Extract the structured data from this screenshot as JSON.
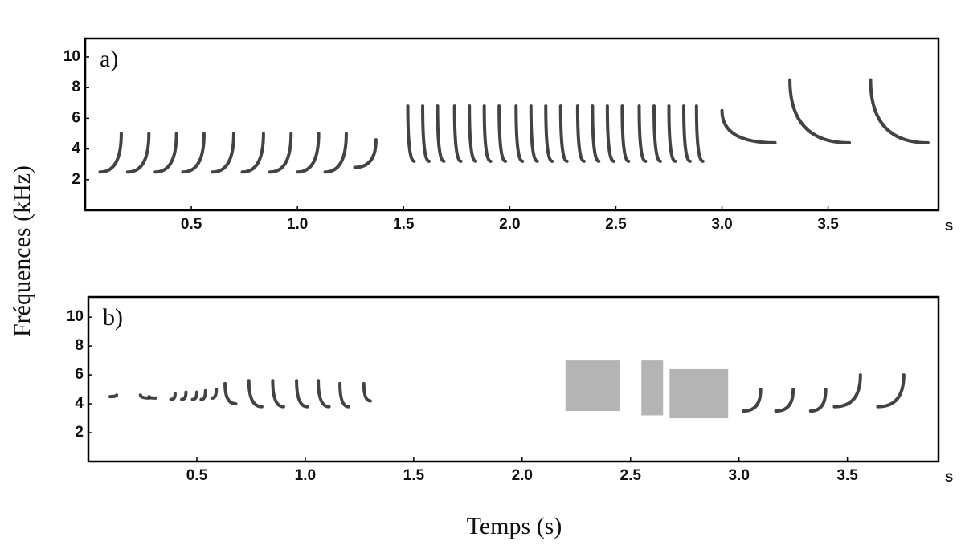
{
  "ylabel": "Fréquences (kHz)",
  "xlabel": "Temps (s)",
  "chart_data": [
    {
      "type": "spectrogram",
      "panel": "a)",
      "x_unit": "s",
      "xlim": [
        0,
        4.02
      ],
      "ylim": [
        0,
        11.2
      ],
      "xticks": [
        0.5,
        {
          "value": 1,
          "label": "1.0"
        },
        1.5,
        {
          "value": 2,
          "label": "2.0"
        },
        2.5,
        {
          "value": 3,
          "label": "3.0"
        },
        3.5
      ],
      "yticks": [
        2,
        4,
        6,
        8,
        10
      ],
      "sweeps": [
        {
          "t": [
            0.07,
            0.17
          ],
          "f": [
            2.5,
            5
          ]
        },
        {
          "t": [
            0.2,
            0.3
          ],
          "f": [
            2.5,
            5
          ]
        },
        {
          "t": [
            0.33,
            0.43
          ],
          "f": [
            2.5,
            5
          ]
        },
        {
          "t": [
            0.46,
            0.56
          ],
          "f": [
            2.5,
            5
          ]
        },
        {
          "t": [
            0.6,
            0.7
          ],
          "f": [
            2.5,
            5
          ]
        },
        {
          "t": [
            0.74,
            0.84
          ],
          "f": [
            2.5,
            5
          ]
        },
        {
          "t": [
            0.87,
            0.97
          ],
          "f": [
            2.5,
            5
          ]
        },
        {
          "t": [
            1,
            1.1
          ],
          "f": [
            2.5,
            5
          ]
        },
        {
          "t": [
            1.13,
            1.23
          ],
          "f": [
            2.5,
            5
          ]
        },
        {
          "t": [
            1.27,
            1.37
          ],
          "f": [
            2.8,
            4.6
          ]
        },
        {
          "t": [
            1.52,
            1.55
          ],
          "f": [
            6.8,
            3.2
          ]
        },
        {
          "t": [
            1.59,
            1.62
          ],
          "f": [
            6.8,
            3.2
          ]
        },
        {
          "t": [
            1.66,
            1.69
          ],
          "f": [
            6.8,
            3.2
          ]
        },
        {
          "t": [
            1.74,
            1.77
          ],
          "f": [
            6.8,
            3.2
          ]
        },
        {
          "t": [
            1.81,
            1.84
          ],
          "f": [
            6.8,
            3.2
          ]
        },
        {
          "t": [
            1.88,
            1.91
          ],
          "f": [
            6.8,
            3.2
          ]
        },
        {
          "t": [
            1.95,
            1.98
          ],
          "f": [
            6.8,
            3.2
          ]
        },
        {
          "t": [
            2.03,
            2.06
          ],
          "f": [
            6.8,
            3.2
          ]
        },
        {
          "t": [
            2.1,
            2.13
          ],
          "f": [
            6.8,
            3.2
          ]
        },
        {
          "t": [
            2.17,
            2.2
          ],
          "f": [
            6.8,
            3.2
          ]
        },
        {
          "t": [
            2.24,
            2.27
          ],
          "f": [
            6.8,
            3.2
          ]
        },
        {
          "t": [
            2.32,
            2.35
          ],
          "f": [
            6.8,
            3.2
          ]
        },
        {
          "t": [
            2.39,
            2.42
          ],
          "f": [
            6.8,
            3.2
          ]
        },
        {
          "t": [
            2.46,
            2.49
          ],
          "f": [
            6.8,
            3.2
          ]
        },
        {
          "t": [
            2.53,
            2.56
          ],
          "f": [
            6.8,
            3.2
          ]
        },
        {
          "t": [
            2.61,
            2.64
          ],
          "f": [
            6.8,
            3.2
          ]
        },
        {
          "t": [
            2.68,
            2.71
          ],
          "f": [
            6.8,
            3.2
          ]
        },
        {
          "t": [
            2.75,
            2.78
          ],
          "f": [
            6.8,
            3.2
          ]
        },
        {
          "t": [
            2.82,
            2.85
          ],
          "f": [
            6.8,
            3.2
          ]
        },
        {
          "t": [
            2.88,
            2.91
          ],
          "f": [
            6.8,
            3.2
          ]
        },
        {
          "t": [
            3,
            3.25
          ],
          "f": [
            6.5,
            4.4
          ]
        },
        {
          "t": [
            3.32,
            3.6
          ],
          "f": [
            8.5,
            4.4
          ]
        },
        {
          "t": [
            3.7,
            3.97
          ],
          "f": [
            8.5,
            4.4
          ]
        }
      ],
      "noise": []
    },
    {
      "type": "spectrogram",
      "panel": "b)",
      "x_unit": "s",
      "xlim": [
        0,
        3.92
      ],
      "ylim": [
        0,
        11.4
      ],
      "xticks": [
        0.5,
        {
          "value": 1,
          "label": "1.0"
        },
        1.5,
        {
          "value": 2,
          "label": "2.0"
        },
        2.5,
        {
          "value": 3,
          "label": "3.0"
        },
        3.5
      ],
      "yticks": [
        2,
        4,
        6,
        8,
        10
      ],
      "sweeps": [
        {
          "t": [
            0.1,
            0.13
          ],
          "f": [
            4.5,
            4.6
          ]
        },
        {
          "t": [
            0.24,
            0.28
          ],
          "f": [
            4.6,
            4.4
          ]
        },
        {
          "t": [
            0.28,
            0.31
          ],
          "f": [
            4.5,
            4.4
          ]
        },
        {
          "t": [
            0.38,
            0.4
          ],
          "f": [
            4.3,
            4.7
          ]
        },
        {
          "t": [
            0.43,
            0.45
          ],
          "f": [
            4.3,
            4.8
          ]
        },
        {
          "t": [
            0.48,
            0.5
          ],
          "f": [
            4.3,
            4.8
          ]
        },
        {
          "t": [
            0.52,
            0.54
          ],
          "f": [
            4.3,
            4.9
          ]
        },
        {
          "t": [
            0.57,
            0.59
          ],
          "f": [
            4.4,
            5
          ]
        },
        {
          "t": [
            0.63,
            0.68
          ],
          "f": [
            5.4,
            4
          ]
        },
        {
          "t": [
            0.74,
            0.8
          ],
          "f": [
            5.6,
            3.8
          ]
        },
        {
          "t": [
            0.85,
            0.9
          ],
          "f": [
            5.6,
            3.8
          ]
        },
        {
          "t": [
            0.96,
            1.01
          ],
          "f": [
            5.6,
            3.8
          ]
        },
        {
          "t": [
            1.06,
            1.11
          ],
          "f": [
            5.6,
            3.8
          ]
        },
        {
          "t": [
            1.16,
            1.2
          ],
          "f": [
            5.4,
            3.8
          ]
        },
        {
          "t": [
            1.27,
            1.3
          ],
          "f": [
            5.4,
            4.2
          ]
        },
        {
          "t": [
            3.02,
            3.1
          ],
          "f": [
            3.5,
            5
          ]
        },
        {
          "t": [
            3.17,
            3.25
          ],
          "f": [
            3.5,
            5
          ]
        },
        {
          "t": [
            3.33,
            3.4
          ],
          "f": [
            3.5,
            5
          ]
        },
        {
          "t": [
            3.44,
            3.56
          ],
          "f": [
            3.8,
            6
          ]
        },
        {
          "t": [
            3.64,
            3.76
          ],
          "f": [
            3.8,
            6
          ]
        }
      ],
      "noise": [
        {
          "t": [
            2.2,
            2.45
          ],
          "f": [
            3.5,
            7
          ]
        },
        {
          "t": [
            2.55,
            2.65
          ],
          "f": [
            3.2,
            7
          ]
        },
        {
          "t": [
            2.68,
            2.95
          ],
          "f": [
            3,
            6.4
          ]
        }
      ]
    }
  ]
}
